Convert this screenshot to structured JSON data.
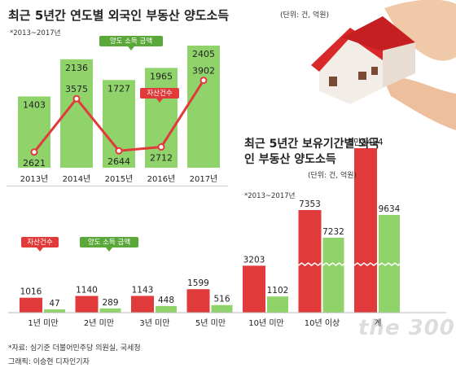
{
  "top_chart": {
    "title": "최근 5년간 연도별 외국인 부동산 양도소득",
    "unit": "(단위: 건, 억원)",
    "period": "*2013~2017년",
    "legend_income": "양도 소득 금액",
    "legend_count": "자산건수"
  },
  "bottom_chart": {
    "title": "최근 5년간 보유기간별 외국인 부동산 양도소득",
    "unit": "(단위: 건, 억원)",
    "period": "*2013~2017년",
    "legend_count": "자산건수",
    "legend_income": "양도 소득 금액"
  },
  "footer": {
    "source": "*자료: 심기준 더불어민주당 의원실, 국세청",
    "graphic": "그래픽: 이승현 디자인기자",
    "watermark": "the 300"
  },
  "colors": {
    "green": "#8fd36a",
    "red": "#e13a3a",
    "bg_green_light": "#d9f0c8"
  },
  "chart_data": [
    {
      "type": "bar",
      "categories": [
        "2013년",
        "2014년",
        "2015년",
        "2016년",
        "2017년"
      ],
      "series": [
        {
          "name": "양도 소득 금액",
          "type": "bar",
          "values": [
            1403,
            2136,
            1727,
            1965,
            2405
          ],
          "labels": [
            "1403",
            "2136",
            "1727",
            "1965",
            "2405"
          ]
        },
        {
          "name": "자산건수",
          "type": "line",
          "values": [
            2621,
            3575,
            2644,
            2712,
            3902
          ],
          "labels": [
            "2621",
            "3575",
            "2644",
            "2712",
            "3902"
          ]
        }
      ]
    },
    {
      "type": "bar",
      "categories": [
        "1년 미만",
        "2년 미만",
        "3년 미만",
        "5년 미만",
        "10년 미만",
        "10년 이상",
        "계"
      ],
      "series": [
        {
          "name": "자산건수",
          "values": [
            1016,
            1140,
            1143,
            1599,
            3203,
            7353,
            15454
          ],
          "labels": [
            "1016",
            "1140",
            "1143",
            "1599",
            "3203",
            "7353",
            "1만5454"
          ]
        },
        {
          "name": "양도 소득 금액",
          "values": [
            47,
            289,
            448,
            516,
            1102,
            7232,
            9634
          ],
          "labels": [
            "47",
            "289",
            "448",
            "516",
            "1102",
            "7232",
            "9634"
          ]
        }
      ]
    }
  ]
}
